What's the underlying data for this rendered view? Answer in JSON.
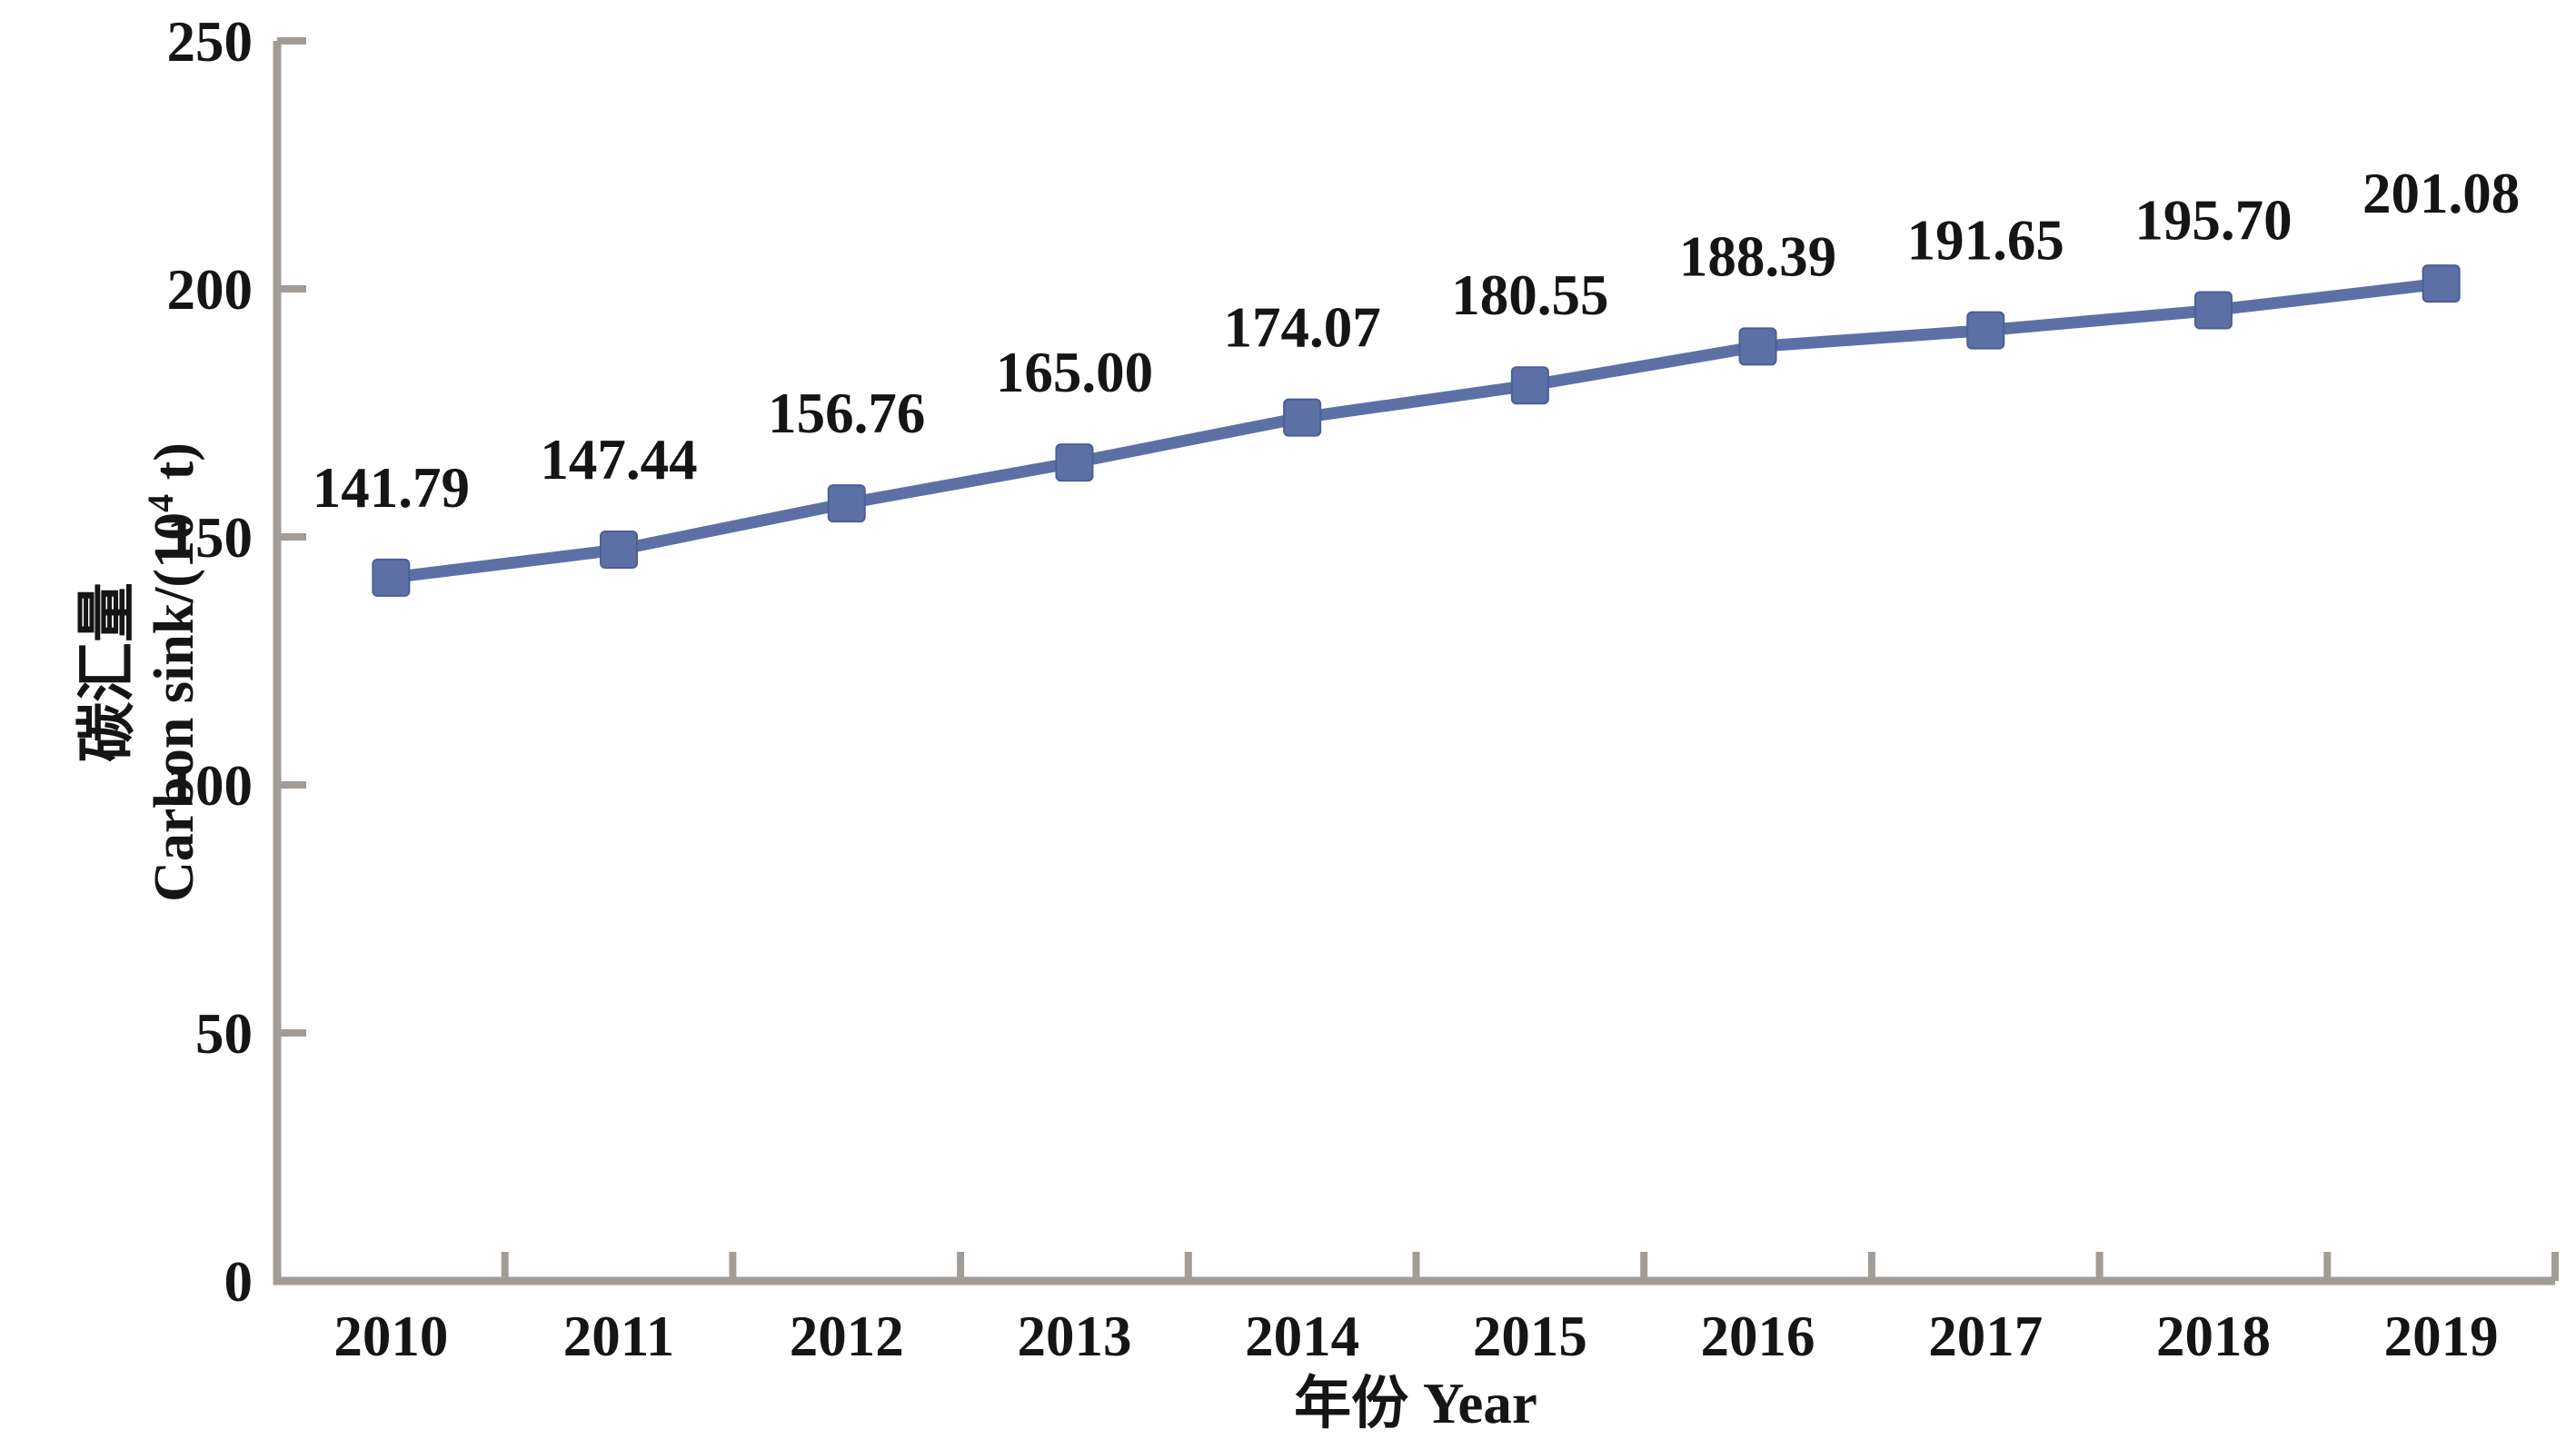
{
  "chart_data": {
    "type": "line",
    "title": "",
    "categories": [
      "2010",
      "2011",
      "2012",
      "2013",
      "2014",
      "2015",
      "2016",
      "2017",
      "2018",
      "2019"
    ],
    "series": [
      {
        "name": "碳汇量 Carbon sink",
        "values": [
          141.79,
          147.44,
          156.76,
          165.0,
          174.07,
          180.55,
          188.39,
          191.65,
          195.7,
          201.08
        ]
      }
    ],
    "point_labels": [
      "141.79",
      "147.44",
      "156.76",
      "165.00",
      "174.07",
      "180.55",
      "188.39",
      "191.65",
      "195.70",
      "201.08"
    ],
    "xlabel": "年份 Year",
    "ylabel_line1": "碳汇量",
    "ylabel_line2_pre": "Carbon sink/(10",
    "ylabel_line2_sup": "4",
    "ylabel_line2_post": " t)",
    "ylim": [
      0,
      250
    ],
    "ytick_step": 50,
    "yticks": [
      "0",
      "50",
      "100",
      "150",
      "200",
      "250"
    ],
    "grid": "off",
    "legend": "none",
    "marker_shape": "square",
    "colors": {
      "line": "#5d70a6",
      "marker_fill": "#5d70a6",
      "marker_edge": "#4a5f96",
      "axis": "#a29c97",
      "text": "#151515",
      "background": "#ffffff"
    }
  }
}
